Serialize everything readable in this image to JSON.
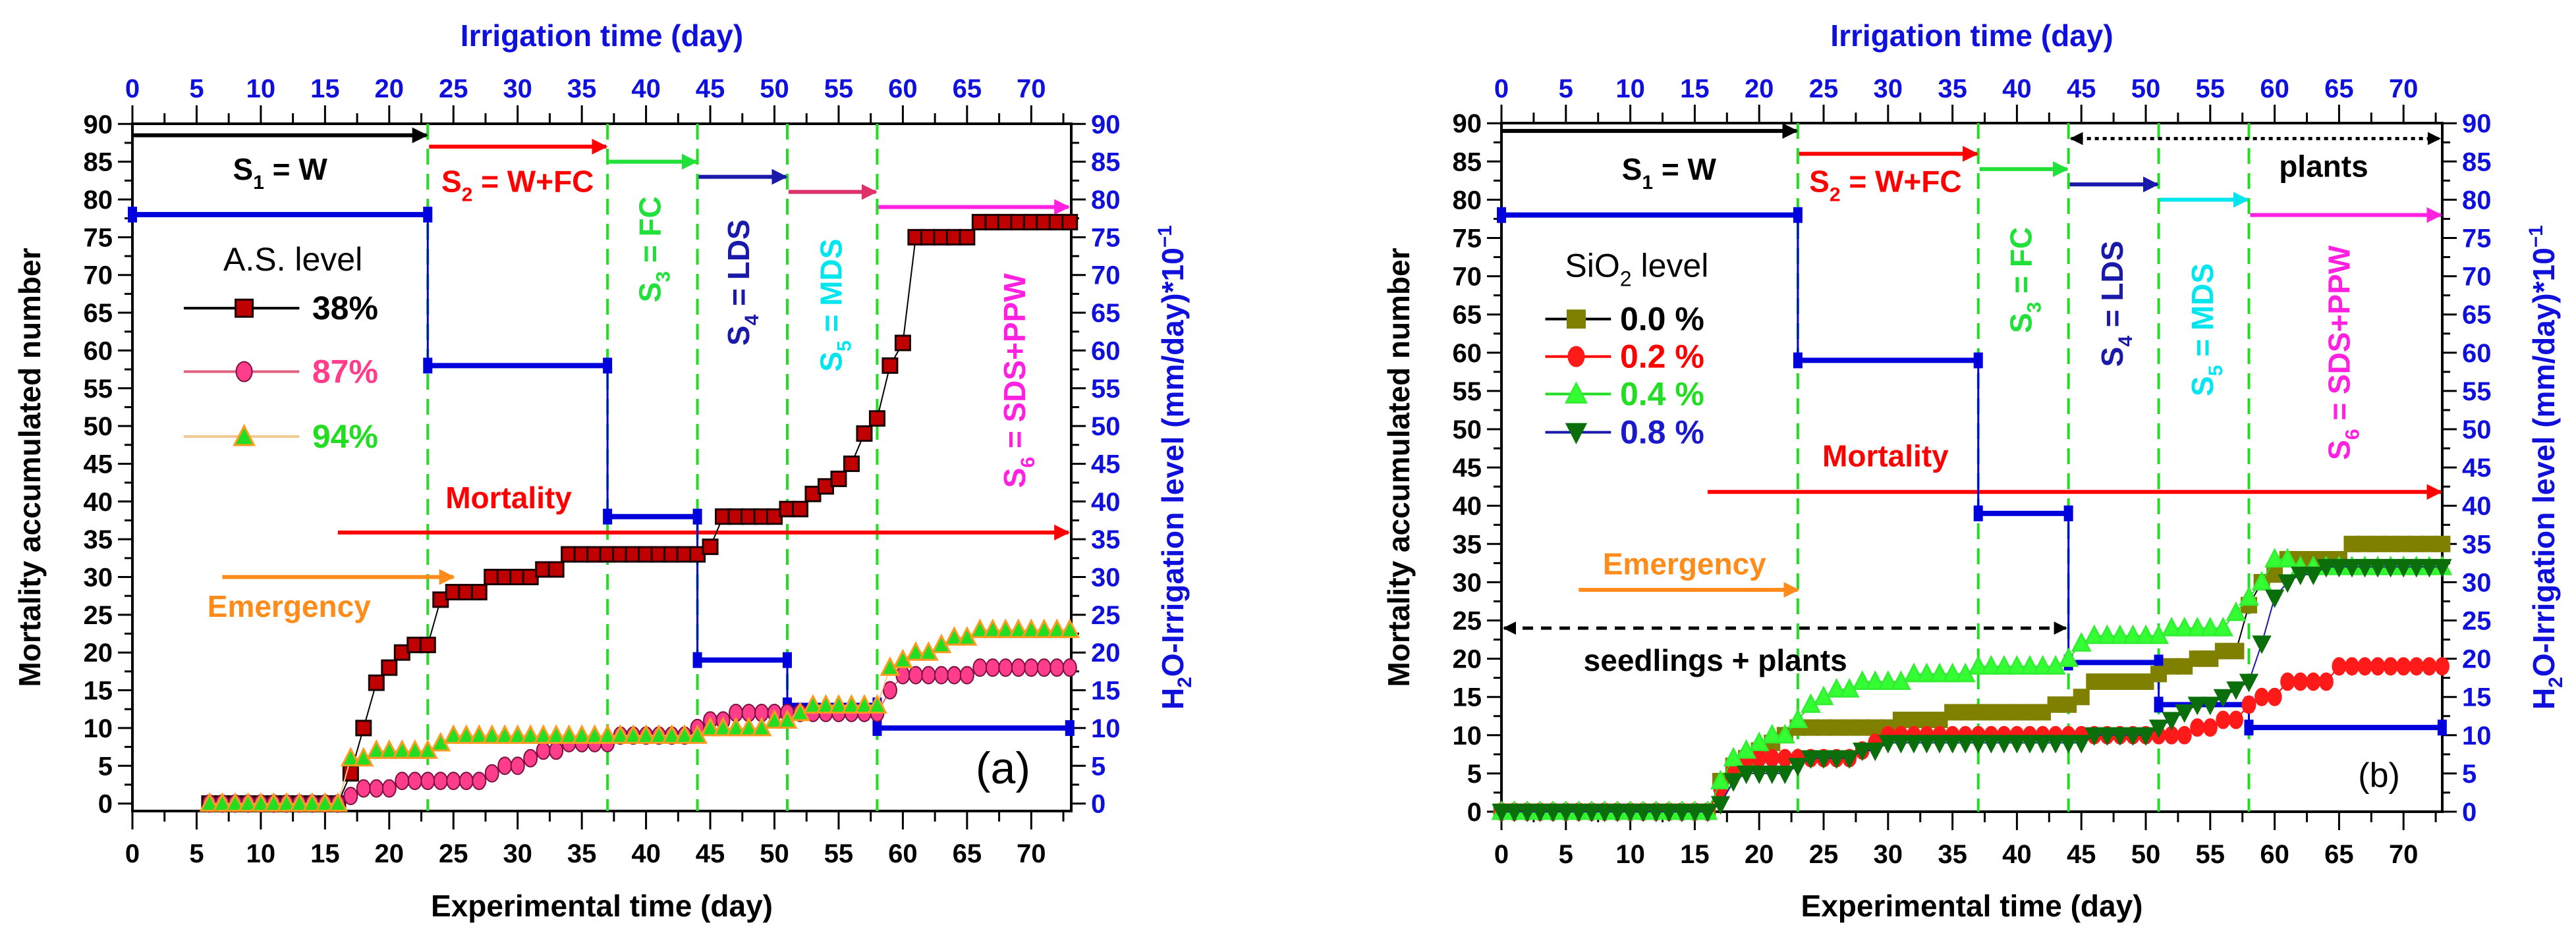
{
  "chart_data": [
    {
      "type": "line",
      "panel_label": "(a)",
      "top_axis_title": "Irrigation time (day)",
      "xlabel": "Experimental  time (day)",
      "ylabel": "Mortality accumulated number",
      "ylabel_right": {
        "pre": "H",
        "sub": "2",
        "main": "O-Irrigation level (mm/day)*10",
        "sup": "−1"
      },
      "xlim": [
        0,
        73
      ],
      "ylim": [
        0,
        90
      ],
      "xticks": [
        0,
        5,
        10,
        15,
        20,
        25,
        30,
        35,
        40,
        45,
        50,
        55,
        60,
        65,
        70
      ],
      "yticks": [
        0,
        5,
        10,
        15,
        20,
        25,
        30,
        35,
        40,
        45,
        50,
        55,
        60,
        65,
        70,
        75,
        80,
        85,
        90
      ],
      "legend_title": "A.S. level",
      "stage_boundaries": [
        23,
        37,
        44,
        51,
        58
      ],
      "stages": [
        {
          "S": "S",
          "sub": "1",
          "rest": " = W",
          "start": 0,
          "end": 23,
          "color": "#000000",
          "text_color": "#000000"
        },
        {
          "S": "S",
          "sub": "2",
          "rest": " = W+FC",
          "start": 23,
          "end": 37,
          "color": "#ff0000",
          "text_color": "#ff0000"
        },
        {
          "S": "S",
          "sub": "3",
          "rest": " = FC",
          "start": 37,
          "end": 44,
          "color": "#22e03a",
          "text_color": "#22e03a"
        },
        {
          "S": "S",
          "sub": "4",
          "rest": " = LDS",
          "start": 44,
          "end": 51,
          "color": "#1a1aaa",
          "text_color": "#1a1aaa"
        },
        {
          "S": "S",
          "sub": "5",
          "rest": " = MDS",
          "start": 51,
          "end": 58,
          "color": "#e0306a",
          "text_color": "#00e5ee"
        },
        {
          "S": "S",
          "sub": "6",
          "rest": " = SDS+PPW",
          "start": 58,
          "end": 73,
          "color": "#ff20e0",
          "text_color": "#ff20e0"
        }
      ],
      "annotations": {
        "mortality": {
          "text": "Mortality",
          "from": 16,
          "to": 73,
          "color": "#ff0000"
        },
        "emergency": {
          "text": "Emergency",
          "from": 7,
          "to": 25,
          "color": "#ff8c1a"
        }
      },
      "irrigation": {
        "name": "H2O-Irrigation level",
        "color": "#0000dd",
        "segments": [
          [
            0,
            23,
            78
          ],
          [
            23,
            37,
            58
          ],
          [
            37,
            44,
            38
          ],
          [
            44,
            51,
            19
          ],
          [
            51,
            58,
            13
          ],
          [
            58,
            73,
            10
          ]
        ]
      },
      "series": [
        {
          "name": "38%",
          "marker": "square",
          "fill": "#c00000",
          "stroke": "#1a0000",
          "line": "#000000",
          "text_color": "#000000",
          "x_start": 6,
          "y": [
            0,
            0,
            0,
            0,
            0,
            0,
            0,
            0,
            0,
            0,
            0,
            4,
            10,
            16,
            18,
            20,
            21,
            21,
            27,
            28,
            28,
            28,
            30,
            30,
            30,
            30,
            31,
            31,
            33,
            33,
            33,
            33,
            33,
            33,
            33,
            33,
            33,
            33,
            33,
            34,
            38,
            38,
            38,
            38,
            38,
            39,
            39,
            41,
            42,
            43,
            45,
            49,
            51,
            58,
            61,
            75,
            75,
            75,
            75,
            75,
            77,
            77,
            77,
            77,
            77,
            77,
            77,
            77
          ]
        },
        {
          "name": "87%",
          "marker": "circle",
          "fill": "#ff3d8b",
          "stroke": "#7a1040",
          "line": "#e06080",
          "text_color": "#ff3d8b",
          "x_start": 6,
          "y": [
            0,
            0,
            0,
            0,
            0,
            0,
            0,
            0,
            0,
            0,
            0,
            1,
            2,
            2,
            2,
            3,
            3,
            3,
            3,
            3,
            3,
            3,
            4,
            5,
            5,
            6,
            7,
            7,
            8,
            8,
            8,
            8,
            9,
            9,
            9,
            9,
            9,
            9,
            10,
            11,
            11,
            12,
            12,
            12,
            12,
            12,
            12,
            12,
            12,
            12,
            12,
            12,
            12,
            15,
            17,
            17,
            17,
            17,
            17,
            17,
            18,
            18,
            18,
            18,
            18,
            18,
            18,
            18
          ]
        },
        {
          "name": "94%",
          "marker": "triangle-up",
          "fill": "#22dd22",
          "stroke": "#ff9a20",
          "line": "#f0c890",
          "text_color": "#22dd22",
          "x_start": 6,
          "y": [
            0,
            0,
            0,
            0,
            0,
            0,
            0,
            0,
            0,
            0,
            0,
            6,
            6,
            7,
            7,
            7,
            7,
            7,
            8,
            9,
            9,
            9,
            9,
            9,
            9,
            9,
            9,
            9,
            9,
            9,
            9,
            9,
            9,
            9,
            9,
            9,
            9,
            9,
            9,
            10,
            10,
            10,
            10,
            10,
            11,
            11,
            12,
            13,
            13,
            13,
            13,
            13,
            13,
            18,
            19,
            20,
            20,
            21,
            22,
            22,
            23,
            23,
            23,
            23,
            23,
            23,
            23,
            23
          ]
        }
      ]
    },
    {
      "type": "line",
      "panel_label": "(b)",
      "top_axis_title": "Irrigation time (day)",
      "xlabel": "Experimental  time (day)",
      "ylabel": "Mortality accumulated number",
      "ylabel_right": {
        "pre": "H",
        "sub": "2",
        "main": "O-Irrigation level (mm/day)*10",
        "sup": "−1"
      },
      "xlim": [
        0,
        73
      ],
      "ylim": [
        0,
        90
      ],
      "xticks": [
        0,
        5,
        10,
        15,
        20,
        25,
        30,
        35,
        40,
        45,
        50,
        55,
        60,
        65,
        70
      ],
      "yticks": [
        0,
        5,
        10,
        15,
        20,
        25,
        30,
        35,
        40,
        45,
        50,
        55,
        60,
        65,
        70,
        75,
        80,
        85,
        90
      ],
      "legend_title": {
        "pre": "SiO",
        "sub": "2",
        "rest": " level"
      },
      "stage_boundaries": [
        23,
        37,
        44,
        51,
        58
      ],
      "stages": [
        {
          "S": "S",
          "sub": "1",
          "rest": " = W",
          "start": 0,
          "end": 23,
          "color": "#000000",
          "text_color": "#000000"
        },
        {
          "S": "S",
          "sub": "2",
          "rest": " = W+FC",
          "start": 23,
          "end": 37,
          "color": "#ff0000",
          "text_color": "#ff0000"
        },
        {
          "S": "S",
          "sub": "3",
          "rest": " = FC",
          "start": 37,
          "end": 44,
          "color": "#22e03a",
          "text_color": "#22e03a"
        },
        {
          "S": "S",
          "sub": "4",
          "rest": " = LDS",
          "start": 44,
          "end": 51,
          "color": "#1a1aaa",
          "text_color": "#1a1aaa"
        },
        {
          "S": "S",
          "sub": "5",
          "rest": " = MDS",
          "start": 51,
          "end": 58,
          "color": "#00e5ee",
          "text_color": "#00e5ee"
        },
        {
          "S": "S",
          "sub": "6",
          "rest": " = SDS+PPW",
          "start": 58,
          "end": 73,
          "color": "#ff20e0",
          "text_color": "#ff20e0"
        }
      ],
      "annotations": {
        "mortality": {
          "text": "Mortality",
          "from": 16,
          "to": 73,
          "color": "#ff0000"
        },
        "emergency": {
          "text": "Emergency",
          "from": 6,
          "to": 23,
          "color": "#ff8c1a"
        },
        "plants": {
          "text": "plants",
          "from": 44,
          "to": 73
        },
        "seedlings": {
          "text": "seedlings + plants",
          "from": 0,
          "to": 44
        }
      },
      "irrigation": {
        "name": "H2O-Irrigation level",
        "color": "#0000dd",
        "segments": [
          [
            0,
            23,
            78
          ],
          [
            23,
            37,
            59
          ],
          [
            37,
            44,
            39
          ],
          [
            44,
            51,
            19.5
          ],
          [
            51,
            58,
            14
          ],
          [
            58,
            73,
            11
          ]
        ]
      },
      "series": [
        {
          "name": "0.0 %",
          "marker": "square",
          "fill": "#808000",
          "stroke": "#808000",
          "line": "#000000",
          "text_color": "#000000",
          "x_start": 0,
          "y": [
            0,
            0,
            0,
            0,
            0,
            0,
            0,
            0,
            0,
            0,
            0,
            0,
            0,
            0,
            0,
            0,
            0,
            4,
            6,
            7,
            8,
            9,
            10,
            11,
            11,
            11,
            11,
            11,
            11,
            11,
            11,
            12,
            12,
            12,
            12,
            13,
            13,
            13,
            13,
            13,
            13,
            13,
            13,
            14,
            14,
            15,
            17,
            17,
            17,
            17,
            17,
            18,
            19,
            19,
            20,
            20,
            21,
            21,
            27,
            30,
            31,
            33,
            33,
            33,
            33,
            33,
            35,
            35,
            35,
            35,
            35,
            35,
            35,
            35
          ]
        },
        {
          "name": "0.2 %",
          "marker": "circle",
          "fill": "#ff1a1a",
          "stroke": "#ff1a1a",
          "line": "#ff0000",
          "text_color": "#ff0000",
          "x_start": 0,
          "y": [
            0,
            0,
            0,
            0,
            0,
            0,
            0,
            0,
            0,
            0,
            0,
            0,
            0,
            0,
            0,
            0,
            0,
            3,
            6,
            7,
            7,
            7,
            7,
            7,
            7,
            7,
            7,
            7,
            8,
            9,
            10,
            10,
            10,
            10,
            10,
            10,
            10,
            10,
            10,
            10,
            10,
            10,
            10,
            10,
            10,
            10,
            10,
            10,
            10,
            10,
            10,
            10,
            10,
            10,
            11,
            11,
            12,
            12,
            14,
            15,
            15,
            17,
            17,
            17,
            17,
            19,
            19,
            19,
            19,
            19,
            19,
            19,
            19,
            19
          ]
        },
        {
          "name": "0.4 %",
          "marker": "triangle-up",
          "fill": "#33ff33",
          "stroke": "#33ee33",
          "line": "#22dd22",
          "text_color": "#22dd22",
          "x_start": 0,
          "y": [
            0,
            0,
            0,
            0,
            0,
            0,
            0,
            0,
            0,
            0,
            0,
            0,
            0,
            0,
            0,
            0,
            0,
            4,
            7,
            8,
            9,
            10,
            10,
            12,
            14,
            15,
            16,
            16,
            17,
            17,
            17,
            17,
            18,
            18,
            18,
            18,
            18,
            19,
            19,
            19,
            19,
            19,
            19,
            19,
            20,
            22,
            23,
            23,
            23,
            23,
            23,
            23,
            24,
            24,
            24,
            24,
            24,
            26,
            28,
            30,
            33,
            33,
            32,
            32,
            32,
            32,
            32,
            32,
            32,
            32,
            32,
            32,
            32,
            32
          ]
        },
        {
          "name": "0.8 %",
          "marker": "triangle-down",
          "fill": "#0a6e0a",
          "stroke": "#0a6e0a",
          "line": "#1a1aaa",
          "text_color": "#1a1acc",
          "x_start": 0,
          "y": [
            0,
            0,
            0,
            0,
            0,
            0,
            0,
            0,
            0,
            0,
            0,
            0,
            0,
            0,
            0,
            0,
            0,
            1,
            4,
            5,
            5,
            5,
            5,
            6,
            7,
            7,
            7,
            7,
            8,
            8,
            9,
            9,
            9,
            9,
            9,
            9,
            9,
            9,
            9,
            9,
            9,
            9,
            9,
            9,
            9,
            9,
            10,
            10,
            10,
            10,
            10,
            11,
            12,
            13,
            14,
            14,
            15,
            16,
            17,
            22,
            28,
            30,
            31,
            31,
            32,
            32,
            32,
            32,
            32,
            32,
            32,
            32,
            32,
            32
          ]
        }
      ]
    }
  ]
}
